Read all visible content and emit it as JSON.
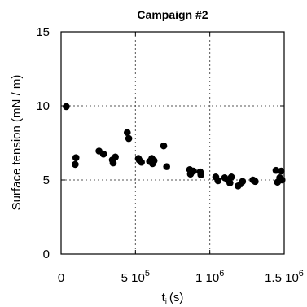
{
  "chart_data": {
    "type": "scatter",
    "title": "Campaign #2",
    "xlabel": "t",
    "xlabel_subscript": "i",
    "xlabel_unit": "(s)",
    "ylabel": "Surface tension (mN / m)",
    "xlim": [
      0,
      1500000
    ],
    "ylim": [
      0,
      15
    ],
    "grid": true,
    "x_ticks": [
      {
        "value": 0,
        "base": "0",
        "exp": ""
      },
      {
        "value": 500000,
        "base": "5 10",
        "exp": "5"
      },
      {
        "value": 1000000,
        "base": "1 10",
        "exp": "6"
      },
      {
        "value": 1500000,
        "base": "1.5 10",
        "exp": "6"
      }
    ],
    "y_ticks": [
      {
        "value": 0,
        "label": "0"
      },
      {
        "value": 5,
        "label": "5"
      },
      {
        "value": 10,
        "label": "10"
      },
      {
        "value": 15,
        "label": "15"
      }
    ],
    "series": [
      {
        "color": "#000000",
        "points": [
          {
            "x": 35000,
            "y": 9.95
          },
          {
            "x": 95000,
            "y": 6.05
          },
          {
            "x": 100000,
            "y": 6.5
          },
          {
            "x": 255000,
            "y": 6.95
          },
          {
            "x": 285000,
            "y": 6.75
          },
          {
            "x": 345000,
            "y": 6.35
          },
          {
            "x": 350000,
            "y": 6.15
          },
          {
            "x": 365000,
            "y": 6.55
          },
          {
            "x": 445000,
            "y": 8.2
          },
          {
            "x": 455000,
            "y": 7.8
          },
          {
            "x": 520000,
            "y": 6.45
          },
          {
            "x": 525000,
            "y": 6.35
          },
          {
            "x": 540000,
            "y": 6.2
          },
          {
            "x": 595000,
            "y": 6.25
          },
          {
            "x": 610000,
            "y": 6.45
          },
          {
            "x": 615000,
            "y": 6.1
          },
          {
            "x": 625000,
            "y": 6.3
          },
          {
            "x": 690000,
            "y": 7.3
          },
          {
            "x": 710000,
            "y": 5.9
          },
          {
            "x": 865000,
            "y": 5.7
          },
          {
            "x": 870000,
            "y": 5.4
          },
          {
            "x": 890000,
            "y": 5.6
          },
          {
            "x": 935000,
            "y": 5.55
          },
          {
            "x": 940000,
            "y": 5.35
          },
          {
            "x": 1040000,
            "y": 5.2
          },
          {
            "x": 1055000,
            "y": 4.95
          },
          {
            "x": 1100000,
            "y": 5.15
          },
          {
            "x": 1120000,
            "y": 5.0
          },
          {
            "x": 1135000,
            "y": 4.8
          },
          {
            "x": 1145000,
            "y": 5.2
          },
          {
            "x": 1190000,
            "y": 4.6
          },
          {
            "x": 1210000,
            "y": 4.75
          },
          {
            "x": 1220000,
            "y": 4.9
          },
          {
            "x": 1290000,
            "y": 5.0
          },
          {
            "x": 1305000,
            "y": 4.9
          },
          {
            "x": 1445000,
            "y": 5.65
          },
          {
            "x": 1455000,
            "y": 4.85
          },
          {
            "x": 1470000,
            "y": 5.15
          },
          {
            "x": 1480000,
            "y": 5.6
          },
          {
            "x": 1485000,
            "y": 5.0
          }
        ]
      }
    ]
  }
}
